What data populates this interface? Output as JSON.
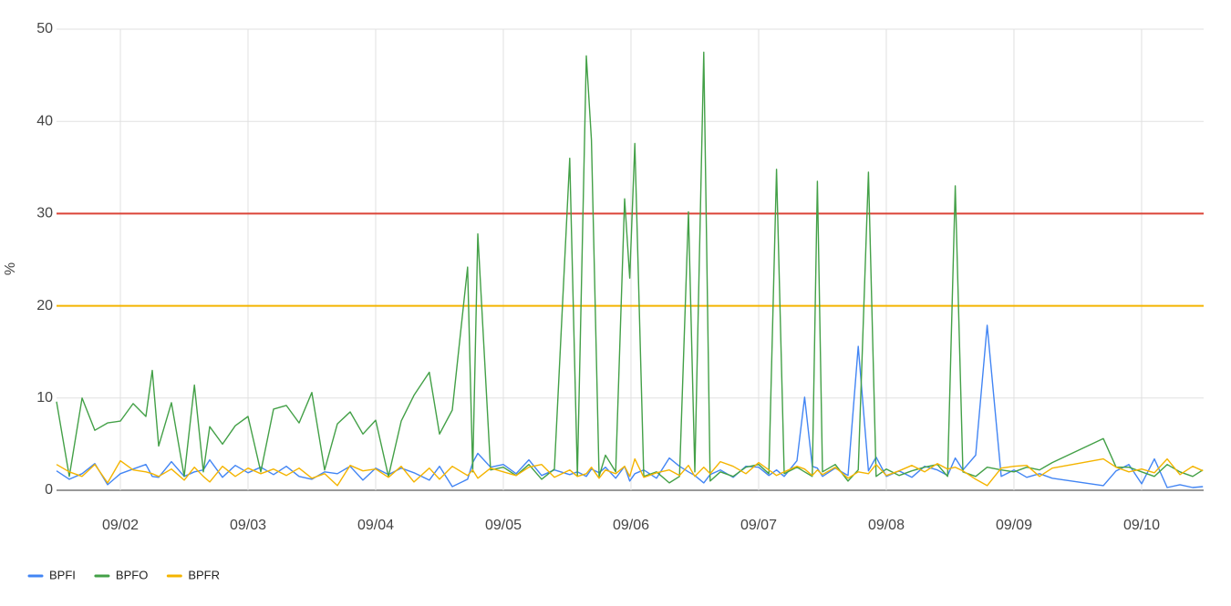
{
  "chart_data": {
    "type": "line",
    "ylabel": "%",
    "x": [
      1.5,
      1.6,
      1.7,
      1.8,
      1.9,
      2.0,
      2.1,
      2.2,
      2.25,
      2.3,
      2.4,
      2.5,
      2.58,
      2.65,
      2.7,
      2.8,
      2.9,
      3.0,
      3.1,
      3.2,
      3.3,
      3.4,
      3.5,
      3.6,
      3.7,
      3.8,
      3.9,
      4.0,
      4.1,
      4.2,
      4.3,
      4.42,
      4.5,
      4.6,
      4.72,
      4.76,
      4.8,
      4.9,
      5.0,
      5.1,
      5.2,
      5.3,
      5.4,
      5.52,
      5.58,
      5.65,
      5.69,
      5.75,
      5.8,
      5.88,
      5.95,
      5.99,
      6.03,
      6.1,
      6.2,
      6.3,
      6.38,
      6.45,
      6.5,
      6.57,
      6.62,
      6.7,
      6.8,
      6.9,
      7.0,
      7.08,
      7.14,
      7.2,
      7.3,
      7.36,
      7.42,
      7.46,
      7.5,
      7.6,
      7.7,
      7.78,
      7.86,
      7.92,
      8.0,
      8.1,
      8.2,
      8.3,
      8.4,
      8.48,
      8.54,
      8.6,
      8.7,
      8.79,
      8.9,
      9.0,
      9.1,
      9.2,
      9.3,
      9.7,
      9.8,
      9.9,
      10.0,
      10.1,
      10.2,
      10.3,
      10.4,
      10.48
    ],
    "series": [
      {
        "name": "BPFI",
        "color": "#4285f4",
        "values": [
          2.1,
          1.2,
          1.8,
          2.9,
          0.6,
          1.8,
          2.3,
          2.8,
          1.5,
          1.4,
          3.1,
          1.5,
          2.0,
          2.2,
          3.3,
          1.4,
          2.7,
          1.9,
          2.5,
          1.7,
          2.6,
          1.5,
          1.2,
          2.0,
          1.8,
          2.6,
          1.1,
          2.4,
          1.7,
          2.4,
          1.9,
          1.1,
          2.6,
          0.4,
          1.2,
          3.0,
          4.0,
          2.5,
          2.8,
          1.8,
          3.3,
          1.6,
          2.2,
          1.7,
          2.0,
          1.5,
          2.3,
          1.9,
          2.5,
          1.3,
          2.6,
          1.0,
          1.8,
          2.2,
          1.3,
          3.5,
          2.6,
          2.0,
          1.6,
          0.8,
          1.7,
          2.2,
          1.4,
          2.6,
          2.5,
          1.6,
          2.2,
          1.5,
          3.2,
          10.1,
          2.6,
          2.4,
          1.5,
          2.4,
          1.6,
          15.6,
          2.1,
          3.6,
          1.5,
          2.1,
          1.4,
          2.6,
          2.2,
          1.6,
          3.5,
          2.2,
          3.8,
          17.9,
          1.5,
          2.2,
          1.4,
          1.8,
          1.3,
          0.5,
          2.1,
          2.8,
          0.7,
          3.4,
          0.3,
          0.6,
          0.3,
          0.4
        ]
      },
      {
        "name": "BPFO",
        "color": "#43a047",
        "values": [
          9.6,
          1.5,
          10,
          6.5,
          7.3,
          7.5,
          9.4,
          8,
          13,
          4.8,
          9.5,
          1.5,
          11.4,
          2,
          6.9,
          5,
          7,
          8,
          2,
          8.8,
          9.2,
          7.3,
          10.6,
          2.2,
          7.2,
          8.5,
          6.1,
          7.6,
          1.5,
          7.5,
          10.3,
          12.8,
          6.1,
          8.7,
          24.2,
          2,
          27.8,
          2.2,
          2.5,
          1.6,
          2.8,
          1.2,
          2.3,
          36,
          1.5,
          47.1,
          38,
          1.5,
          3.8,
          2,
          31.6,
          23,
          37.6,
          1.5,
          2,
          0.8,
          1.5,
          30.2,
          2,
          47.5,
          1,
          2,
          1.5,
          2.5,
          2.8,
          1.8,
          34.8,
          1.8,
          2.5,
          2,
          1.5,
          33.5,
          2,
          2.8,
          1,
          2.2,
          34.5,
          1.5,
          2.3,
          1.6,
          2.1,
          2.5,
          2.8,
          1.5,
          33,
          2,
          1.5,
          2.5,
          2.2,
          2,
          2.5,
          2.2,
          3,
          5.6,
          2.5,
          2.5,
          2,
          1.5,
          2.8,
          2,
          1.5,
          2.2
        ]
      },
      {
        "name": "BPFR",
        "color": "#f4b400",
        "values": [
          2.8,
          2.0,
          1.5,
          2.8,
          0.8,
          3.2,
          2.2,
          2.0,
          1.8,
          1.5,
          2.3,
          1.1,
          2.5,
          1.5,
          0.9,
          2.6,
          1.5,
          2.4,
          1.8,
          2.3,
          1.6,
          2.4,
          1.3,
          1.8,
          0.5,
          2.7,
          2.1,
          2.3,
          1.4,
          2.6,
          0.9,
          2.4,
          1.2,
          2.6,
          1.6,
          2.2,
          1.3,
          2.4,
          2.0,
          1.6,
          2.5,
          2.8,
          1.4,
          2.2,
          1.5,
          1.8,
          2.5,
          1.3,
          2.2,
          1.8,
          2.6,
          1.5,
          3.4,
          1.4,
          1.9,
          2.2,
          1.6,
          2.7,
          1.5,
          2.5,
          1.8,
          3.1,
          2.6,
          1.8,
          3.0,
          2.2,
          1.6,
          2.0,
          2.6,
          2.3,
          1.6,
          2.2,
          1.7,
          2.5,
          1.3,
          2.0,
          1.8,
          2.8,
          1.6,
          2.1,
          2.7,
          2.0,
          2.9,
          2.3,
          2.5,
          2.1,
          1.2,
          0.5,
          2.4,
          2.6,
          2.7,
          1.5,
          2.4,
          3.4,
          2.5,
          2.0,
          2.3,
          1.9,
          3.4,
          1.7,
          2.6,
          2.1
        ]
      }
    ],
    "thresholds": [
      {
        "value": 30,
        "color": "#db4437"
      },
      {
        "value": 20,
        "color": "#f4b400"
      }
    ],
    "xlim": [
      1.5,
      10.486
    ],
    "xticks": [
      {
        "value": 2,
        "label": "09/02"
      },
      {
        "value": 3,
        "label": "09/03"
      },
      {
        "value": 4,
        "label": "09/04"
      },
      {
        "value": 5,
        "label": "09/05"
      },
      {
        "value": 6,
        "label": "09/06"
      },
      {
        "value": 7,
        "label": "09/07"
      },
      {
        "value": 8,
        "label": "09/08"
      },
      {
        "value": 9,
        "label": "09/09"
      },
      {
        "value": 10,
        "label": "09/10"
      }
    ],
    "ylim": [
      0,
      50
    ],
    "yticks": [
      0,
      10,
      20,
      30,
      40,
      50
    ],
    "grid": true,
    "legend": "bottom-left"
  }
}
